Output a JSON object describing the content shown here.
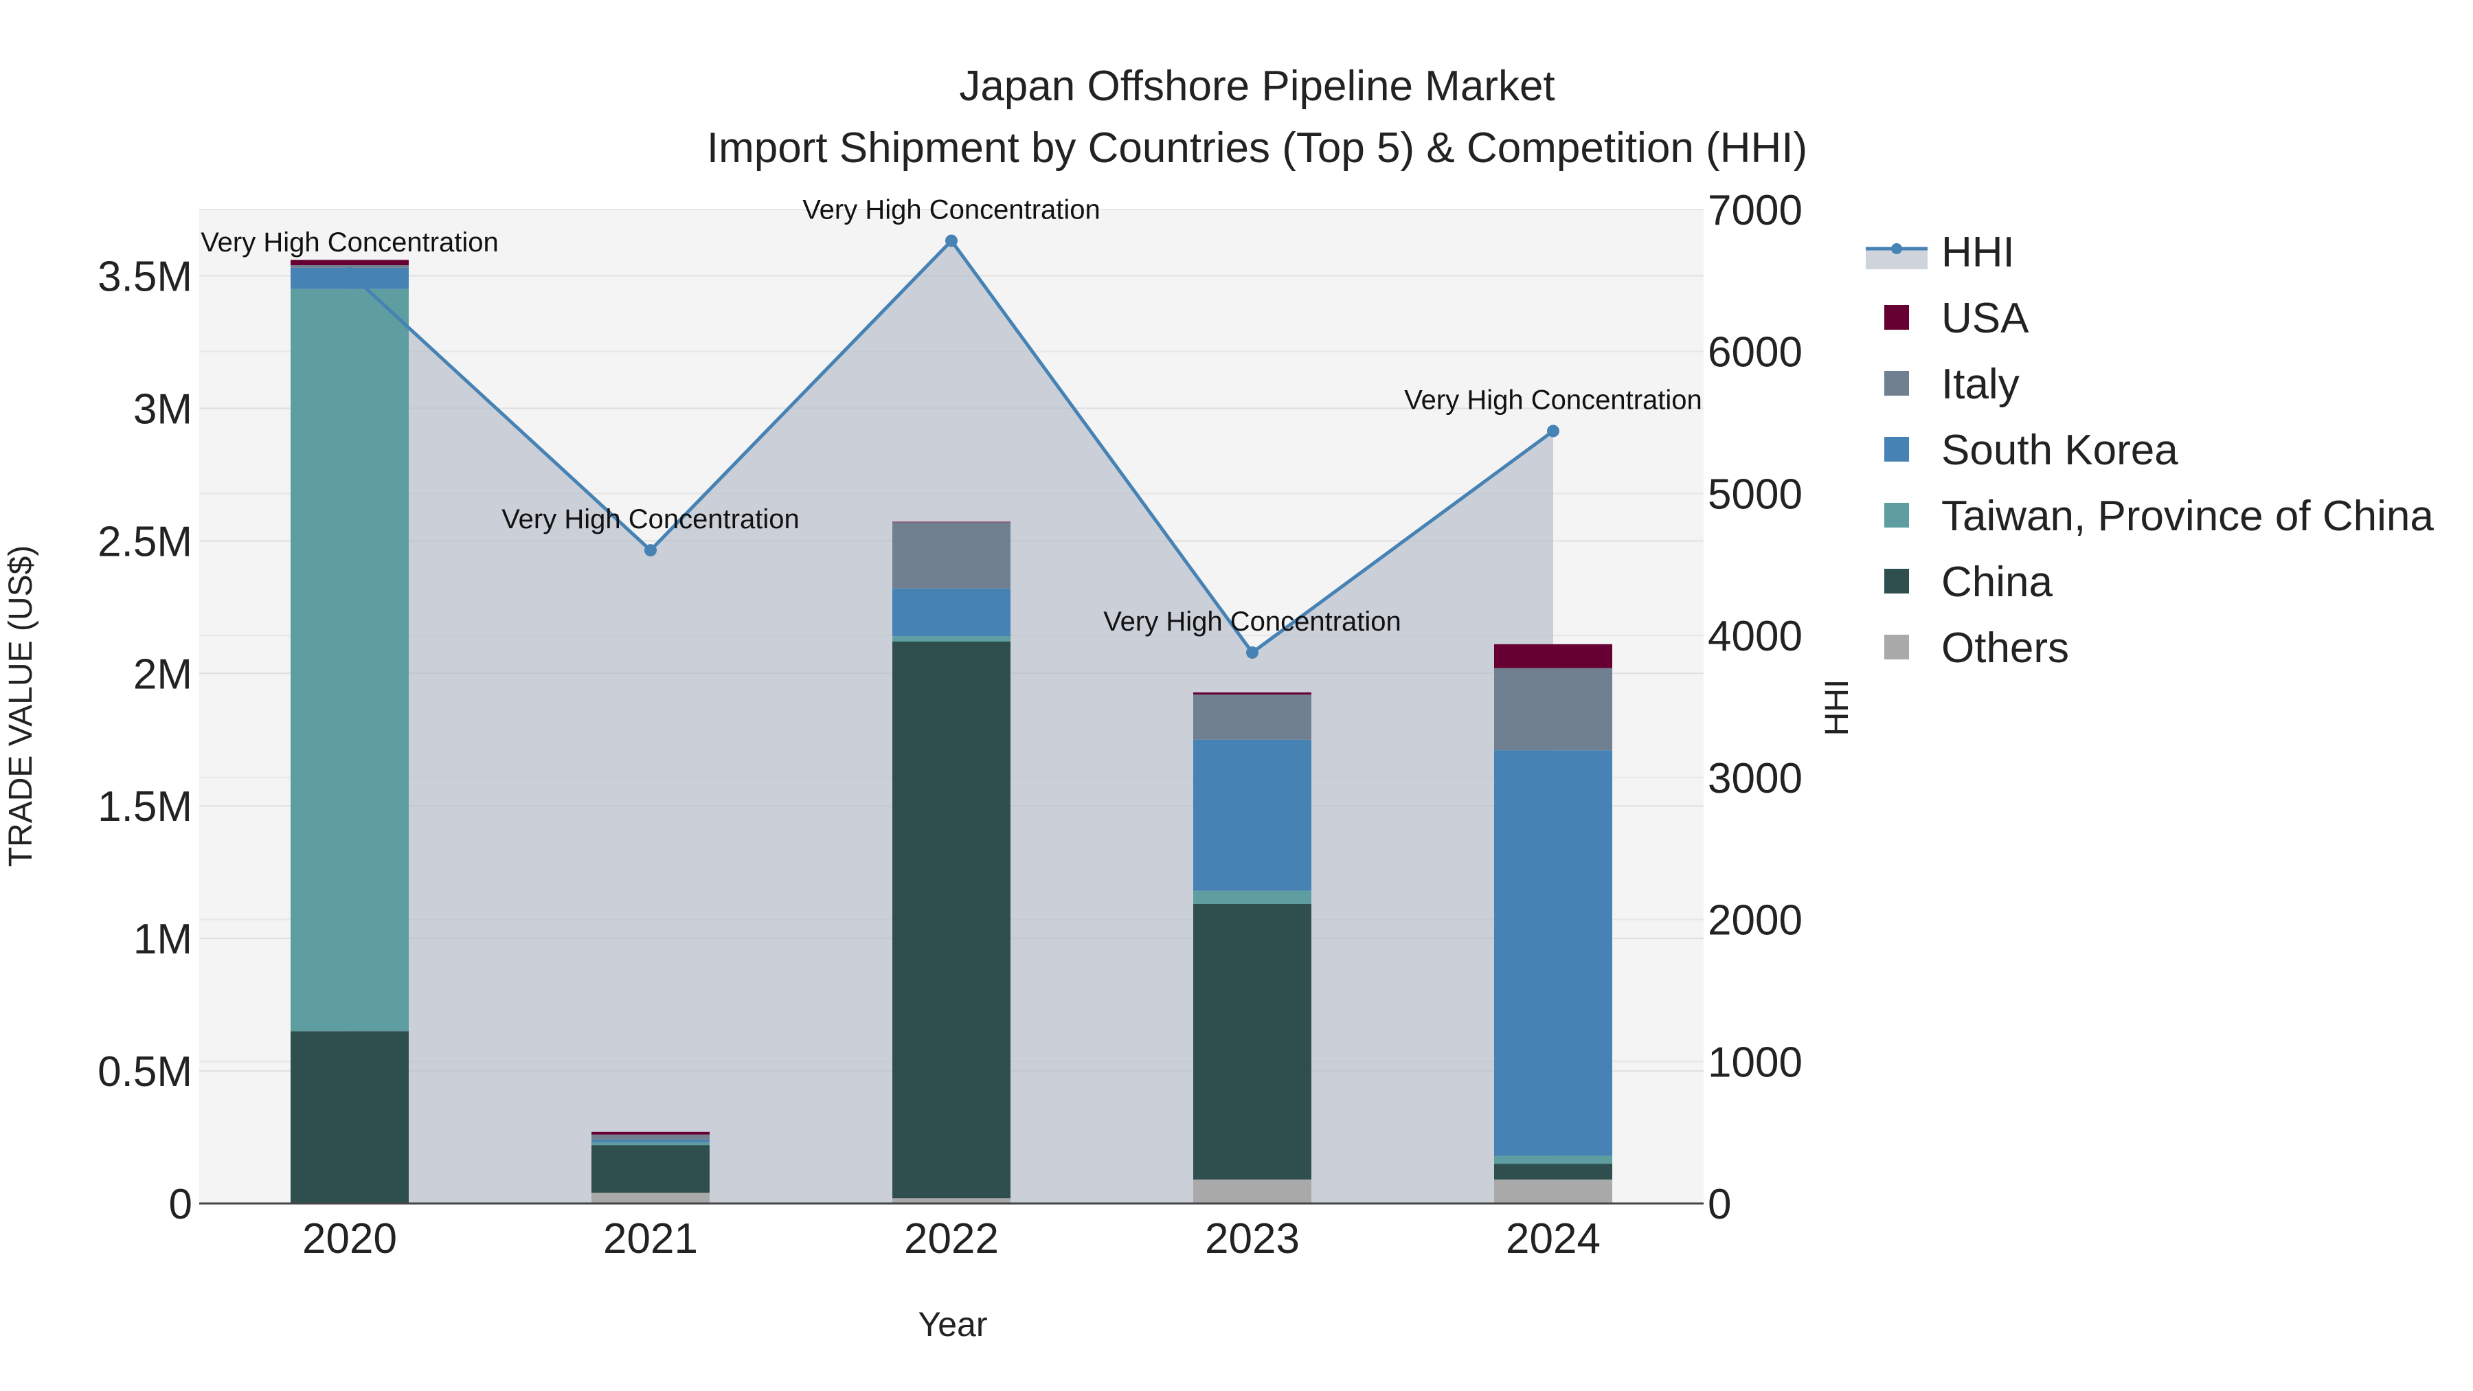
{
  "chart_data": {
    "type": "bar",
    "title_line1": "Japan Offshore Pipeline Market",
    "title_line2": "Import Shipment by Countries (Top 5) & Competition (HHI)",
    "xlabel": "Year",
    "ylabel": "TRADE VALUE (US$)",
    "y2label": "HHI",
    "categories": [
      "2020",
      "2021",
      "2022",
      "2023",
      "2024"
    ],
    "ylim": [
      0,
      3750000
    ],
    "y2lim": [
      0,
      7000
    ],
    "y_ticks": [
      0,
      500000,
      1000000,
      1500000,
      2000000,
      2500000,
      3000000,
      3500000
    ],
    "y_tick_labels": [
      "0",
      "0.5M",
      "1M",
      "1.5M",
      "2M",
      "2.5M",
      "3M",
      "3.5M"
    ],
    "y2_ticks": [
      0,
      1000,
      2000,
      3000,
      4000,
      5000,
      6000,
      7000
    ],
    "y2_tick_labels": [
      "0",
      "1000",
      "2000",
      "3000",
      "4000",
      "5000",
      "6000",
      "7000"
    ],
    "series": [
      {
        "name": "Others",
        "color": "#a9a9a9",
        "values": [
          0,
          40000,
          20000,
          90000,
          90000
        ]
      },
      {
        "name": "China",
        "color": "#2f4f4f",
        "values": [
          650000,
          180000,
          2100000,
          1040000,
          60000
        ]
      },
      {
        "name": "Taiwan, Province of China",
        "color": "#5f9ea0",
        "values": [
          2800000,
          10000,
          20000,
          50000,
          30000
        ]
      },
      {
        "name": "South Korea",
        "color": "#4682b4",
        "values": [
          80000,
          10000,
          180000,
          570000,
          1530000
        ]
      },
      {
        "name": "Italy",
        "color": "#708090",
        "values": [
          10000,
          20000,
          250000,
          170000,
          310000
        ]
      },
      {
        "name": "USA",
        "color": "#660033",
        "values": [
          20000,
          10000,
          2000,
          8000,
          90000
        ]
      }
    ],
    "hhi": {
      "name": "HHI",
      "color": "#4682b4",
      "values": [
        6550,
        4600,
        6780,
        3880,
        5440
      ],
      "labels": [
        "Very High Concentration",
        "Very High Concentration",
        "Very High Concentration",
        "Very High Concentration",
        "Very High Concentration"
      ]
    },
    "legend": [
      "HHI",
      "USA",
      "Italy",
      "South Korea",
      "Taiwan, Province of China",
      "China",
      "Others"
    ],
    "legend_position": "right",
    "grid": true
  }
}
